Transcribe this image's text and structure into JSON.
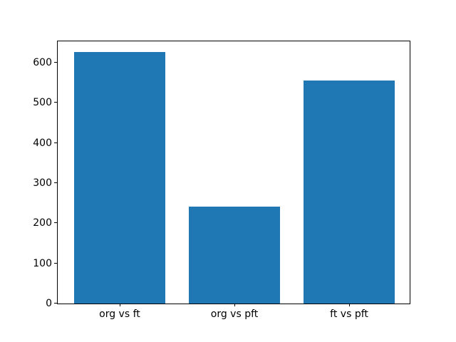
{
  "chart_data": {
    "type": "bar",
    "title": "",
    "xlabel": "",
    "ylabel": "",
    "categories": [
      "org vs ft",
      "org vs pft",
      "ft vs pft"
    ],
    "values": [
      626,
      242,
      556
    ],
    "yticks": [
      "0",
      "100",
      "200",
      "300",
      "400",
      "500",
      "600"
    ],
    "ytick_values": [
      0,
      100,
      200,
      300,
      400,
      500,
      600
    ],
    "ylim": [
      0,
      657
    ],
    "bar_color": "#1f77b4",
    "spine_color": "#000000",
    "background_color": "#ffffff",
    "grid": false,
    "legend": null
  }
}
